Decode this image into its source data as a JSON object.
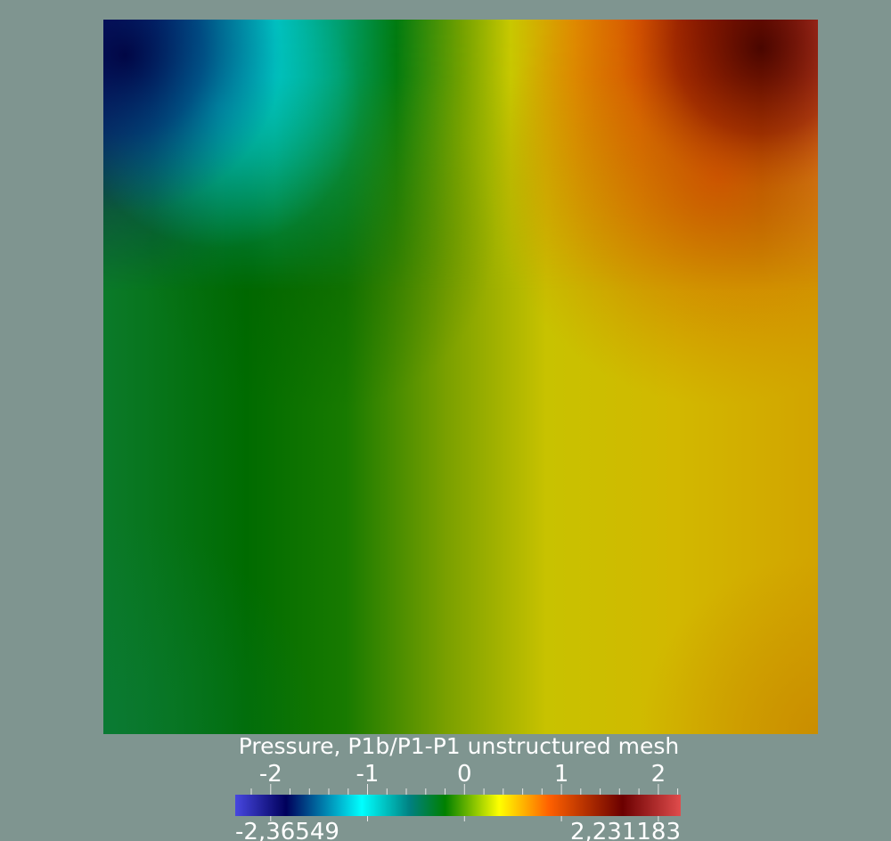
{
  "chart_data": {
    "type": "heatmap",
    "title": "Pressure, P1b/P1-P1 unstructured mesh",
    "field": "Pressure",
    "range": {
      "min": -2.36549,
      "max": 2.231183,
      "min_label": "-2,36549",
      "max_label": "2,231183"
    },
    "colorbar": {
      "ticks": [
        -2,
        -1,
        0,
        1,
        2
      ],
      "tick_labels": [
        "-2",
        "-1",
        "0",
        "1",
        "2"
      ],
      "minor_step": 0.2,
      "colormap": [
        {
          "value": -2.36549,
          "color": "#4747e0"
        },
        {
          "value": -1.84,
          "color": "#00005b"
        },
        {
          "value": -1.06,
          "color": "#00ffff"
        },
        {
          "value": -0.56,
          "color": "#008080"
        },
        {
          "value": -0.2,
          "color": "#008000"
        },
        {
          "value": 0.36,
          "color": "#ffff00"
        },
        {
          "value": 0.87,
          "color": "#ff6100"
        },
        {
          "value": 1.63,
          "color": "#6b0000"
        },
        {
          "value": 2.231183,
          "color": "#e04c4c"
        }
      ]
    },
    "grid": false,
    "legend": "bottom-center"
  },
  "background_color": "#7f9590"
}
